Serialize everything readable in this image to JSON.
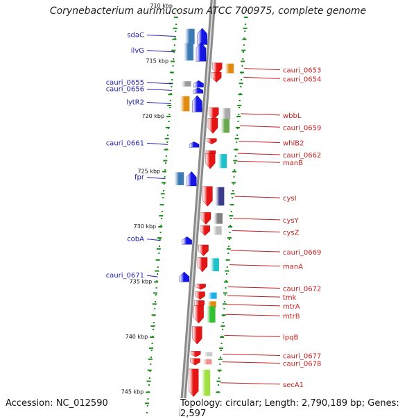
{
  "title": "Corynebacterium aurimucosum ATCC 700975, complete genome",
  "footer": {
    "accession": "Accession: NC_012590",
    "topology": "Topology: circular; Length: 2,790,189 bp; Genes: 2,597"
  },
  "colors": {
    "left_strand": "#1515e6",
    "right_strand": "#e61515",
    "backbone": "#8a8a8a",
    "ticks": "#1a8a1a",
    "left_label": "#1f1fb4",
    "right_label": "#c81e1e"
  },
  "scale_labels": [
    {
      "label": "710 kbp",
      "kbp": 710
    },
    {
      "label": "715 kbp",
      "kbp": 715
    },
    {
      "label": "720 kbp",
      "kbp": 720
    },
    {
      "label": "725 kbp",
      "kbp": 725
    },
    {
      "label": "730 kbp",
      "kbp": 730
    },
    {
      "label": "735 kbp",
      "kbp": 735
    },
    {
      "label": "740 kbp",
      "kbp": 740
    },
    {
      "label": "745 kbp",
      "kbp": 745
    }
  ],
  "genes_left": [
    {
      "name": "sdaC",
      "kbp": 712.8,
      "len": 1.5,
      "cog": "#3c7ab4"
    },
    {
      "name": "ilvG",
      "kbp": 714.2,
      "len": 1.7,
      "cog": "#3c7ab4"
    },
    {
      "name": "cauri_0655",
      "kbp": 717.1,
      "len": 0.6,
      "cog": "#9a9a9a"
    },
    {
      "name": "cauri_0656",
      "kbp": 717.7,
      "len": 0.5,
      "cog": null
    },
    {
      "name": "lytR2",
      "kbp": 718.9,
      "len": 1.5,
      "cog": "#e08a10"
    },
    {
      "name": "cauri_0661",
      "kbp": 722.6,
      "len": 0.4,
      "cog": null
    },
    {
      "name": "fpr",
      "kbp": 725.7,
      "len": 1.3,
      "cog": "#3c7ab4"
    },
    {
      "name": "cobA",
      "kbp": 731.3,
      "len": 0.7,
      "cog": null
    },
    {
      "name": "cauri_0671",
      "kbp": 734.6,
      "len": 0.9,
      "cog": null
    }
  ],
  "genes_right": [
    {
      "name": "cauri_0653",
      "kbp": 715.7,
      "len": 1.0,
      "cog": "#e08a10"
    },
    {
      "name": "cauri_0654",
      "kbp": 716.5,
      "len": 0.9,
      "cog": null
    },
    {
      "name": "wbbL",
      "kbp": 719.8,
      "len": 1.1,
      "cog": "#aaaaaa"
    },
    {
      "name": "cauri_0659",
      "kbp": 720.9,
      "len": 1.4,
      "cog": "#6aa84f"
    },
    {
      "name": "whiB2",
      "kbp": 722.3,
      "len": 0.3,
      "cog": null
    },
    {
      "name": "cauri_0662",
      "kbp": 723.4,
      "len": 0.5,
      "cog": null
    },
    {
      "name": "manB",
      "kbp": 724.1,
      "len": 1.4,
      "cog": "#20c0c8"
    },
    {
      "name": "cysI",
      "kbp": 727.3,
      "len": 1.8,
      "cog": "#3c3c8c"
    },
    {
      "name": "cysY",
      "kbp": 729.3,
      "len": 1.1,
      "cog": "#808080"
    },
    {
      "name": "cysZ",
      "kbp": 730.4,
      "len": 0.9,
      "cog": "#bdbdbd"
    },
    {
      "name": "cauri_0669",
      "kbp": 732.2,
      "len": 1.0,
      "cog": null
    },
    {
      "name": "manA",
      "kbp": 733.5,
      "len": 1.3,
      "cog": "#20c0c8"
    },
    {
      "name": "cauri_0672",
      "kbp": 735.5,
      "len": 0.4,
      "cog": null
    },
    {
      "name": "tmk",
      "kbp": 736.3,
      "len": 0.7,
      "cog": "#20b0e8"
    },
    {
      "name": "mtrA",
      "kbp": 737.1,
      "len": 0.7,
      "cog": "#e08a10"
    },
    {
      "name": "mtrB",
      "kbp": 738.0,
      "len": 1.6,
      "cog": "#30c030"
    },
    {
      "name": "lpqB",
      "kbp": 739.9,
      "len": 1.6,
      "cog": null
    },
    {
      "name": "cauri_0677",
      "kbp": 741.6,
      "len": 0.5,
      "cog": "#cccccc"
    },
    {
      "name": "cauri_0678",
      "kbp": 742.3,
      "len": 0.6,
      "cog": "#f09090"
    },
    {
      "name": "secA1",
      "kbp": 744.2,
      "len": 2.5,
      "cog": "#a0e040"
    }
  ]
}
